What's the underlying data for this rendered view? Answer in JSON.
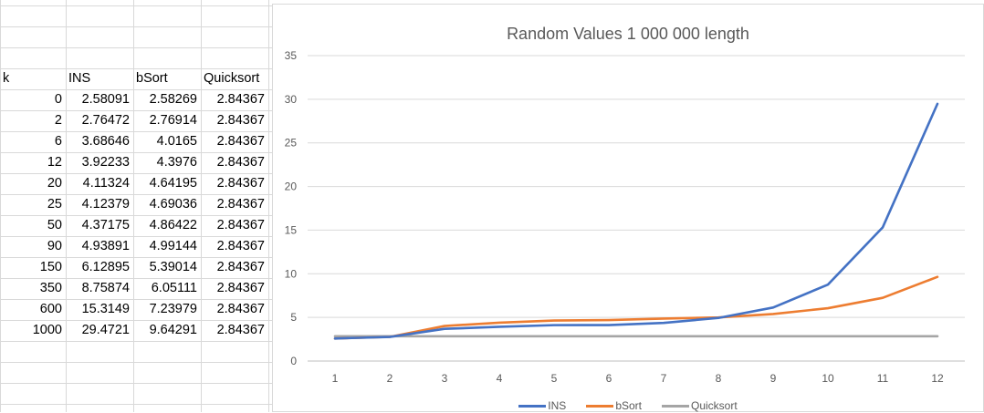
{
  "sheet": {
    "headers": [
      "k",
      "INS",
      "bSort",
      "Quicksort"
    ],
    "rows": [
      [
        "0",
        "2.58091",
        "2.58269",
        "2.84367"
      ],
      [
        "2",
        "2.76472",
        "2.76914",
        "2.84367"
      ],
      [
        "6",
        "3.68646",
        "4.0165",
        "2.84367"
      ],
      [
        "12",
        "3.92233",
        "4.3976",
        "2.84367"
      ],
      [
        "20",
        "4.11324",
        "4.64195",
        "2.84367"
      ],
      [
        "25",
        "4.12379",
        "4.69036",
        "2.84367"
      ],
      [
        "50",
        "4.37175",
        "4.86422",
        "2.84367"
      ],
      [
        "90",
        "4.93891",
        "4.99144",
        "2.84367"
      ],
      [
        "150",
        "6.12895",
        "5.39014",
        "2.84367"
      ],
      [
        "350",
        "8.75874",
        "6.05111",
        "2.84367"
      ],
      [
        "600",
        "15.3149",
        "7.23979",
        "2.84367"
      ],
      [
        "1000",
        "29.4721",
        "9.64291",
        "2.84367"
      ]
    ]
  },
  "chart_data": {
    "type": "line",
    "title": "Random Values 1 000 000 length",
    "categories": [
      "1",
      "2",
      "3",
      "4",
      "5",
      "6",
      "7",
      "8",
      "9",
      "10",
      "11",
      "12"
    ],
    "series": [
      {
        "name": "INS",
        "color": "#4472c4",
        "values": [
          2.58091,
          2.76472,
          3.68646,
          3.92233,
          4.11324,
          4.12379,
          4.37175,
          4.93891,
          6.12895,
          8.75874,
          15.3149,
          29.4721
        ]
      },
      {
        "name": "bSort",
        "color": "#ed7d31",
        "values": [
          2.58269,
          2.76914,
          4.0165,
          4.3976,
          4.64195,
          4.69036,
          4.86422,
          4.99144,
          5.39014,
          6.05111,
          7.23979,
          9.64291
        ]
      },
      {
        "name": "Quicksort",
        "color": "#a5a5a5",
        "values": [
          2.84367,
          2.84367,
          2.84367,
          2.84367,
          2.84367,
          2.84367,
          2.84367,
          2.84367,
          2.84367,
          2.84367,
          2.84367,
          2.84367
        ]
      }
    ],
    "ylim": [
      0,
      35
    ],
    "yticks": [
      "0",
      "5",
      "10",
      "15",
      "20",
      "25",
      "30",
      "35"
    ],
    "grid": true,
    "legend": "bottom"
  }
}
